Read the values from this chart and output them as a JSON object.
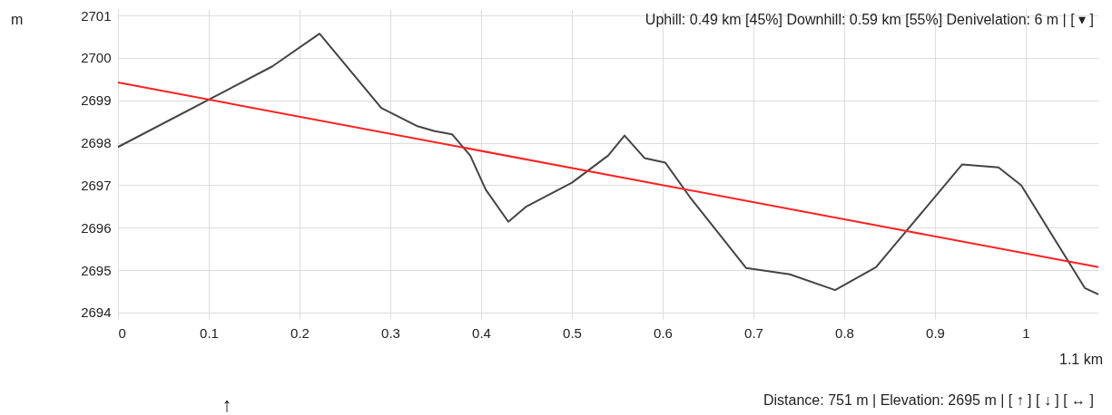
{
  "chart_data": {
    "type": "line",
    "xlabel": "1.1 km",
    "ylabel": "m",
    "xlim": [
      0,
      1.08
    ],
    "ylim": [
      2693.85,
      2701.15
    ],
    "xticks": [
      0,
      0.1,
      0.2,
      0.3,
      0.4,
      0.5,
      0.6,
      0.7,
      0.8,
      0.9,
      1
    ],
    "yticks": [
      2694,
      2695,
      2696,
      2697,
      2698,
      2699,
      2700,
      2701
    ],
    "grid": true,
    "marker": "none",
    "line_style": "solid",
    "series": [
      {
        "color": "#444444",
        "x": [
          0,
          0.17,
          0.222,
          0.29,
          0.33,
          0.348,
          0.368,
          0.388,
          0.405,
          0.43,
          0.45,
          0.5,
          0.54,
          0.558,
          0.58,
          0.603,
          0.63,
          0.692,
          0.74,
          0.79,
          0.835,
          0.93,
          0.97,
          0.995,
          1.065,
          1.08
        ],
        "values": [
          2697.9,
          2699.8,
          2700.57,
          2698.82,
          2698.39,
          2698.28,
          2698.2,
          2697.7,
          2696.9,
          2696.14,
          2696.5,
          2697.06,
          2697.7,
          2698.17,
          2697.64,
          2697.53,
          2696.72,
          2695.05,
          2694.9,
          2694.53,
          2695.07,
          2697.49,
          2697.42,
          2697.0,
          2694.58,
          2694.43
        ]
      },
      {
        "color": "#ff2020",
        "x": [
          0,
          1.08
        ],
        "values": [
          2699.42,
          2695.07
        ]
      }
    ],
    "annotations": [
      "Uphill: 0.49 km [45%] Downhill: 0.59 km [55%] Denivelation: 6 m | [ ▾ ]",
      "Distance: 751 m  |  Elevation: 2695 m  |  [ ↑ ] [ ↓ ] [ ↔ ]",
      "↑"
    ]
  }
}
